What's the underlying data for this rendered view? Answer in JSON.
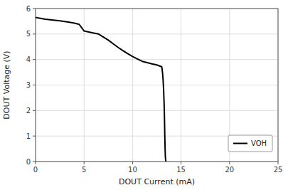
{
  "chart_data": {
    "type": "line",
    "xlabel": "DOUT Current (mA)",
    "ylabel": "DOUT Voltage (V)",
    "x": [
      0.0,
      0.3,
      0.6,
      1.0,
      1.5,
      2.0,
      2.5,
      3.0,
      3.5,
      4.0,
      4.5,
      5.0,
      5.5,
      6.0,
      6.5,
      7.0,
      7.5,
      8.0,
      8.5,
      9.0,
      9.5,
      10.0,
      10.5,
      11.0,
      11.5,
      12.0,
      12.5,
      13.0,
      13.05,
      13.1,
      13.15,
      13.2,
      13.25,
      13.28,
      13.3,
      13.32,
      13.34,
      13.36,
      13.38,
      13.4,
      13.42,
      13.44,
      13.46
    ],
    "series": [
      {
        "name": "VOH",
        "color": "#000000",
        "values": [
          5.65,
          5.63,
          5.61,
          5.58,
          5.56,
          5.54,
          5.52,
          5.49,
          5.46,
          5.43,
          5.38,
          5.12,
          5.08,
          5.04,
          5.0,
          4.88,
          4.76,
          4.62,
          4.48,
          4.35,
          4.23,
          4.12,
          4.02,
          3.93,
          3.88,
          3.83,
          3.79,
          3.72,
          3.62,
          3.45,
          3.2,
          2.85,
          2.3,
          1.9,
          1.5,
          1.1,
          0.75,
          0.45,
          0.22,
          0.1,
          0.04,
          0.01,
          0.0
        ]
      }
    ],
    "xlim": [
      0,
      25
    ],
    "ylim": [
      0,
      6
    ],
    "xticks": [
      0,
      5,
      10,
      15,
      20,
      25
    ],
    "yticks": [
      0,
      1,
      2,
      3,
      4,
      5,
      6
    ],
    "grid": true,
    "legend": "lower right"
  }
}
